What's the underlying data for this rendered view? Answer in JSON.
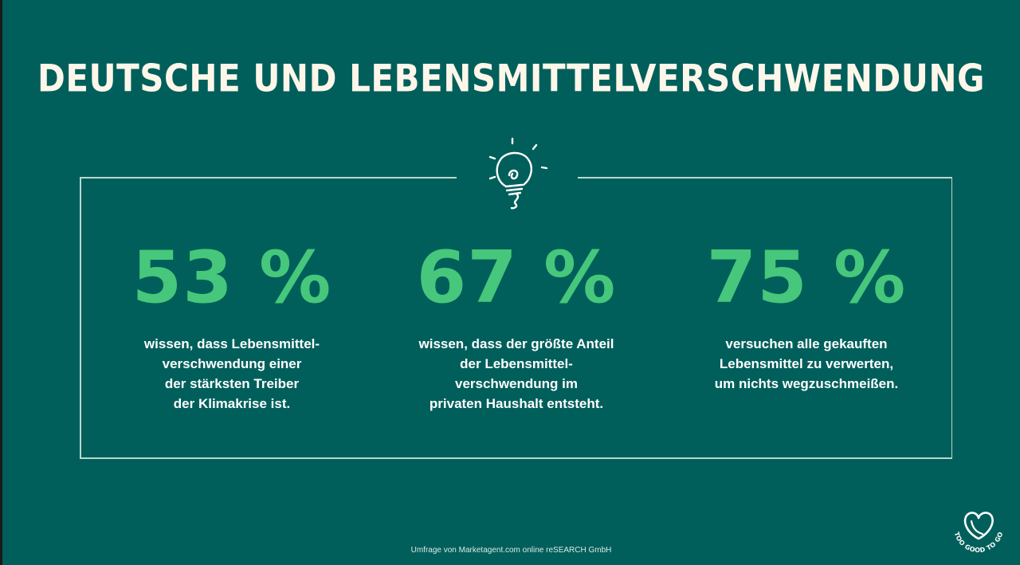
{
  "title": "DEUTSCHE UND LEBENSMITTELVERSCHWENDUNG",
  "stats": [
    {
      "value": "53 %",
      "lines": [
        "wissen, dass Lebensmittel-",
        "verschwendung einer",
        "der stärksten Treiber",
        "der Klimakrise ist."
      ]
    },
    {
      "value": "67 %",
      "lines": [
        "wissen, dass der größte Anteil",
        "der Lebensmittel-",
        "verschwendung im",
        "privaten Haushalt entsteht."
      ]
    },
    {
      "value": "75 %",
      "lines": [
        "versuchen alle gekauften",
        "Lebensmittel zu verwerten,",
        "um nichts wegzuschmeißen."
      ]
    }
  ],
  "source": "Umfrage von Marketagent.com online reSEARCH GmbH",
  "logo": {
    "text": "TOO GOOD TO GO",
    "icon": "heart-logo-icon"
  },
  "bulb_icon": "lightbulb-icon",
  "colors": {
    "background": "#005f5b",
    "accent": "#46c77b",
    "title": "#fff6ea",
    "frame": "#b9d7cf"
  }
}
